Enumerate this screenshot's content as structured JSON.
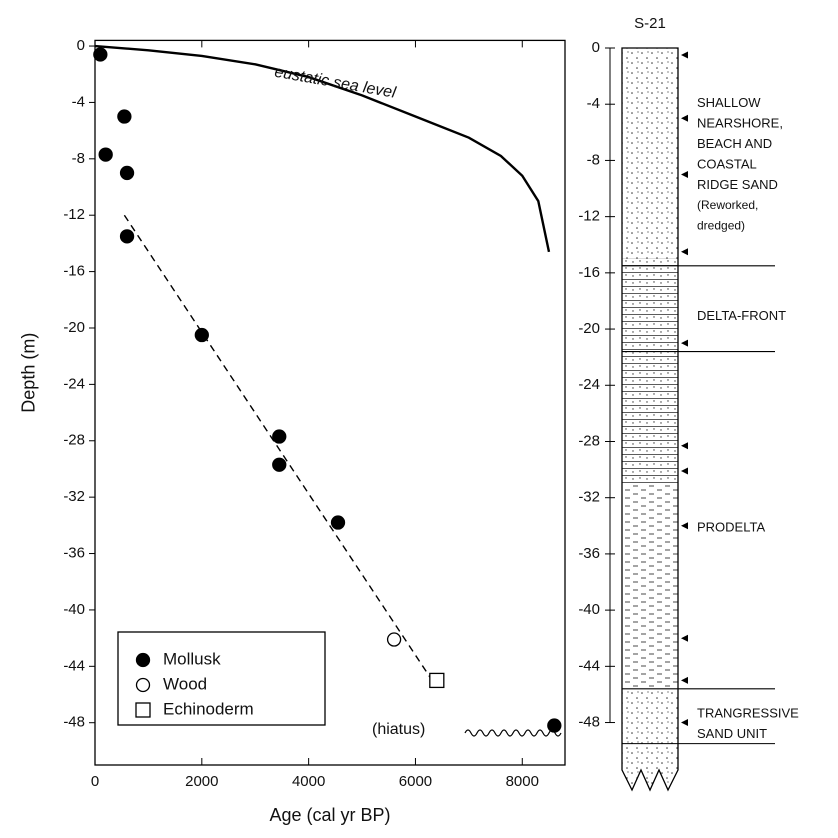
{
  "chart_data": [
    {
      "type": "scatter",
      "x_label": "Age (cal yr BP)",
      "y_label": "Depth (m)",
      "xlim": [
        0,
        8800
      ],
      "ylim": [
        -51,
        0.4
      ],
      "xticks": [
        0,
        2000,
        4000,
        6000,
        8000
      ],
      "yticks": [
        0,
        -4,
        -8,
        -12,
        -16,
        -20,
        -24,
        -28,
        -32,
        -36,
        -40,
        -44,
        -48
      ],
      "legend": "lower left",
      "series": [
        {
          "name": "Mollusk",
          "marker": "filled-circle",
          "color": "#000000",
          "x": [
            100,
            550,
            200,
            600,
            600,
            2000,
            3450,
            3450,
            4550,
            8600
          ],
          "y": [
            -0.6,
            -5,
            -7.7,
            -9,
            -13.5,
            -20.5,
            -27.7,
            -29.7,
            -33.8,
            -48.2
          ]
        },
        {
          "name": "Wood",
          "marker": "open-circle",
          "color": "#000000",
          "x": [
            5600
          ],
          "y": [
            -42.1
          ]
        },
        {
          "name": "Echinoderm",
          "marker": "open-square",
          "color": "#000000",
          "x": [
            6400
          ],
          "y": [
            -45
          ]
        }
      ],
      "curves": [
        {
          "label": "eustatic sea level",
          "style": "solid",
          "x": [
            0,
            1000,
            2000,
            3000,
            4000,
            5000,
            6000,
            7000,
            7600,
            8000,
            8300,
            8500
          ],
          "y": [
            0,
            -0.3,
            -0.7,
            -1.3,
            -2.2,
            -3.5,
            -5,
            -6.5,
            -7.8,
            -9.2,
            -11,
            -14.6
          ]
        },
        {
          "style": "dashed",
          "x": [
            550,
            6400
          ],
          "y": [
            -12,
            -45.5
          ]
        }
      ],
      "hiatus_label": "(hiatus)"
    },
    {
      "type": "stratigraphic-column",
      "title": "S-21",
      "ylim": [
        -52.8,
        0
      ],
      "yticks": [
        0,
        -4,
        -8,
        -12,
        -16,
        -20,
        -24,
        -28,
        -32,
        -36,
        -40,
        -44,
        -48
      ],
      "samples": [
        -0.5,
        -5,
        -9,
        -14.5,
        -21,
        -28.3,
        -30.1,
        -34,
        -42,
        -45,
        -48
      ],
      "lithology": [
        {
          "pattern": "sand",
          "top": 0,
          "bottom": -15
        },
        {
          "pattern": "laminated-sand",
          "top": -15,
          "bottom": -31
        },
        {
          "pattern": "mud",
          "top": -31,
          "bottom": -45.6
        },
        {
          "pattern": "sand",
          "top": -45.6,
          "bottom": -52.8
        }
      ],
      "units": [
        {
          "lines": [
            "SHALLOW",
            "NEARSHORE,",
            "BEACH AND",
            "COASTAL",
            "RIDGE SAND",
            "(Reworked,",
            "dredged)"
          ],
          "top": 0,
          "bottom": -15.5
        },
        {
          "lines": [
            "DELTA-FRONT"
          ],
          "top": -15.5,
          "bottom": -21.6
        },
        {
          "lines": [
            "PRODELTA"
          ],
          "top": -21.6,
          "bottom": -45.6
        },
        {
          "lines": [
            "TRANGRESSIVE",
            "SAND UNIT"
          ],
          "top": -45.6,
          "bottom": -49.5
        }
      ]
    }
  ]
}
